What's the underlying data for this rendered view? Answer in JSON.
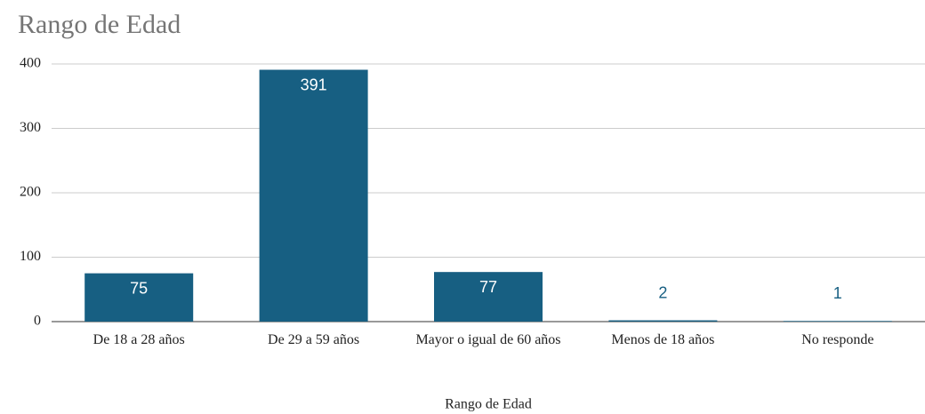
{
  "chart_data": {
    "type": "bar",
    "title": "Rango de Edad",
    "x_label": "Rango de Edad",
    "categories": [
      "De 18 a 28 años",
      "De 29 a 59 años",
      "Mayor o igual de 60 años",
      "Menos de 18 años",
      "No responde"
    ],
    "values": [
      75,
      391,
      77,
      2,
      1
    ],
    "color": "#175f82",
    "ylim": [
      0,
      400
    ],
    "yticks": [
      0,
      100,
      200,
      300,
      400
    ],
    "grid": true
  }
}
